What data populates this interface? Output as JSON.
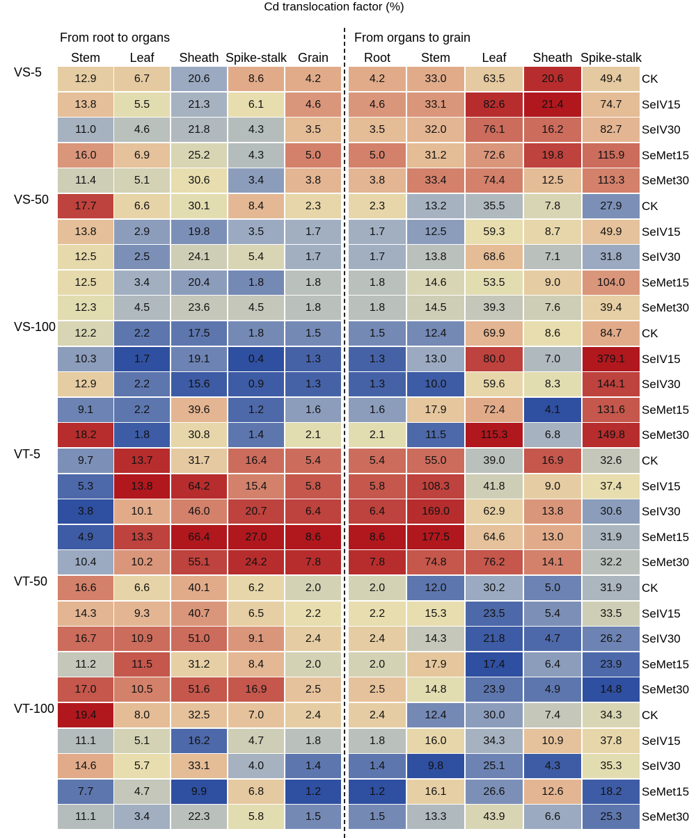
{
  "chart_data": {
    "type": "heatmap",
    "title": "Cd translocation factor (%)",
    "sections": [
      {
        "title": "From root to organs",
        "columns": [
          "Stem",
          "Leaf",
          "Sheath",
          "Spike-stalk",
          "Grain"
        ]
      },
      {
        "title": "From organs to grain",
        "columns": [
          "Root",
          "Stem",
          "Leaf",
          "Sheath",
          "Spike-stalk"
        ]
      }
    ],
    "groups": [
      "VS-5",
      "VS-50",
      "VS-100",
      "VT-5",
      "VT-50",
      "VT-100"
    ],
    "row_labels": [
      "CK",
      "SeIV15",
      "SeIV30",
      "SeMet15",
      "SeMet30"
    ],
    "color_scale": [
      "#2f4fa0",
      "#9fadc2",
      "#e7e0b0",
      "#e3b08e",
      "#b0181e"
    ],
    "left_values": [
      [
        "12.9",
        "6.7",
        "20.6",
        "8.6",
        "4.2"
      ],
      [
        "13.8",
        "5.5",
        "21.3",
        "6.1",
        "4.6"
      ],
      [
        "11.0",
        "4.6",
        "21.8",
        "4.3",
        "3.5"
      ],
      [
        "16.0",
        "6.9",
        "25.2",
        "4.3",
        "5.0"
      ],
      [
        "11.4",
        "5.1",
        "30.6",
        "3.4",
        "3.8"
      ],
      [
        "17.7",
        "6.6",
        "30.1",
        "8.4",
        "2.3"
      ],
      [
        "13.8",
        "2.9",
        "19.8",
        "3.5",
        "1.7"
      ],
      [
        "12.5",
        "2.5",
        "24.1",
        "5.4",
        "1.7"
      ],
      [
        "12.5",
        "3.4",
        "20.4",
        "1.8",
        "1.8"
      ],
      [
        "12.3",
        "4.5",
        "23.6",
        "4.5",
        "1.8"
      ],
      [
        "12.2",
        "2.2",
        "17.5",
        "1.8",
        "1.5"
      ],
      [
        "10.3",
        "1.7",
        "19.1",
        "0.4",
        "1.3"
      ],
      [
        "12.9",
        "2.2",
        "15.6",
        "0.9",
        "1.3"
      ],
      [
        "9.1",
        "2.2",
        "39.6",
        "1.2",
        "1.6"
      ],
      [
        "18.2",
        "1.8",
        "30.8",
        "1.4",
        "2.1"
      ],
      [
        "9.7",
        "13.7",
        "31.7",
        "16.4",
        "5.4"
      ],
      [
        "5.3",
        "13.8",
        "64.2",
        "15.4",
        "5.8"
      ],
      [
        "3.8",
        "10.1",
        "46.0",
        "20.7",
        "6.4"
      ],
      [
        "4.9",
        "13.3",
        "66.4",
        "27.0",
        "8.6"
      ],
      [
        "10.4",
        "10.2",
        "55.1",
        "24.2",
        "7.8"
      ],
      [
        "16.6",
        "6.6",
        "40.1",
        "6.2",
        "2.0"
      ],
      [
        "14.3",
        "9.3",
        "40.7",
        "6.5",
        "2.2"
      ],
      [
        "16.7",
        "10.9",
        "51.0",
        "9.1",
        "2.4"
      ],
      [
        "11.2",
        "11.5",
        "31.2",
        "8.4",
        "2.0"
      ],
      [
        "17.0",
        "10.5",
        "51.6",
        "16.9",
        "2.5"
      ],
      [
        "19.4",
        "8.0",
        "32.5",
        "7.0",
        "2.4"
      ],
      [
        "11.1",
        "5.1",
        "16.2",
        "4.7",
        "1.8"
      ],
      [
        "14.6",
        "5.7",
        "33.1",
        "4.0",
        "1.4"
      ],
      [
        "7.7",
        "4.7",
        "9.9",
        "6.8",
        "1.2"
      ],
      [
        "11.1",
        "3.4",
        "22.3",
        "5.8",
        "1.5"
      ]
    ],
    "right_values": [
      [
        "4.2",
        "33.0",
        "63.5",
        "20.6",
        "49.4"
      ],
      [
        "4.6",
        "33.1",
        "82.6",
        "21.4",
        "74.7"
      ],
      [
        "3.5",
        "32.0",
        "76.1",
        "16.2",
        "82.7"
      ],
      [
        "5.0",
        "31.2",
        "72.6",
        "19.8",
        "115.9"
      ],
      [
        "3.8",
        "33.4",
        "74.4",
        "12.5",
        "113.3"
      ],
      [
        "2.3",
        "13.2",
        "35.5",
        "7.8",
        "27.9"
      ],
      [
        "1.7",
        "12.5",
        "59.3",
        "8.7",
        "49.9"
      ],
      [
        "1.7",
        "13.8",
        "68.6",
        "7.1",
        "31.8"
      ],
      [
        "1.8",
        "14.6",
        "53.5",
        "9.0",
        "104.0"
      ],
      [
        "1.8",
        "14.5",
        "39.3",
        "7.6",
        "39.4"
      ],
      [
        "1.5",
        "12.4",
        "69.9",
        "8.6",
        "84.7"
      ],
      [
        "1.3",
        "13.0",
        "80.0",
        "7.0",
        "379.1"
      ],
      [
        "1.3",
        "10.0",
        "59.6",
        "8.3",
        "144.1"
      ],
      [
        "1.6",
        "17.9",
        "72.4",
        "4.1",
        "131.6"
      ],
      [
        "2.1",
        "11.5",
        "115.3",
        "6.8",
        "149.8"
      ],
      [
        "5.4",
        "55.0",
        "39.0",
        "16.9",
        "32.6"
      ],
      [
        "5.8",
        "108.3",
        "41.8",
        "9.0",
        "37.4"
      ],
      [
        "6.4",
        "169.0",
        "62.9",
        "13.8",
        "30.6"
      ],
      [
        "8.6",
        "177.5",
        "64.6",
        "13.0",
        "31.9"
      ],
      [
        "7.8",
        "74.8",
        "76.2",
        "14.1",
        "32.2"
      ],
      [
        "2.0",
        "12.0",
        "30.2",
        "5.0",
        "31.9"
      ],
      [
        "2.2",
        "15.3",
        "23.5",
        "5.4",
        "33.5"
      ],
      [
        "2.4",
        "14.3",
        "21.8",
        "4.7",
        "26.2"
      ],
      [
        "2.0",
        "17.9",
        "17.4",
        "6.4",
        "23.9"
      ],
      [
        "2.5",
        "14.8",
        "23.9",
        "4.9",
        "14.8"
      ],
      [
        "2.4",
        "12.4",
        "30.0",
        "7.4",
        "34.3"
      ],
      [
        "1.8",
        "16.0",
        "34.3",
        "10.9",
        "37.8"
      ],
      [
        "1.4",
        "9.8",
        "25.1",
        "4.3",
        "35.3"
      ],
      [
        "1.2",
        "16.1",
        "26.6",
        "12.6",
        "18.2"
      ],
      [
        "1.5",
        "13.3",
        "43.9",
        "6.6",
        "25.3"
      ]
    ]
  }
}
